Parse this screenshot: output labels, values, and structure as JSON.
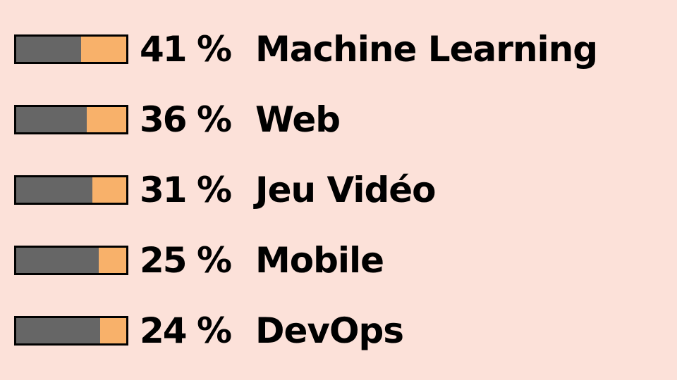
{
  "chart_data": {
    "type": "bar",
    "orientation": "horizontal",
    "categories": [
      "Machine Learning",
      "Web",
      "Jeu Vidéo",
      "Mobile",
      "DevOps"
    ],
    "value_labels": [
      "41 %",
      "36 %",
      "31 %",
      "25 %",
      "24 %"
    ],
    "values": [
      41,
      36,
      31,
      25,
      24
    ],
    "colors": {
      "background": "#fce1d9",
      "bar_remainder": "#666666",
      "bar_value": "#f8b16a",
      "bar_border": "#000000",
      "text": "#000000"
    }
  }
}
